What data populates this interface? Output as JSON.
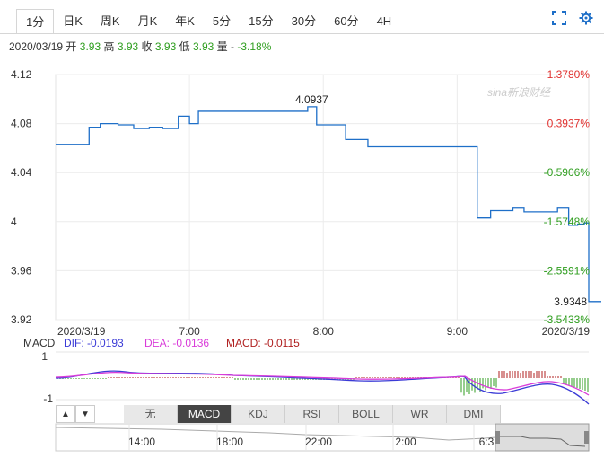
{
  "tabs": [
    {
      "label": "1分",
      "active": true
    },
    {
      "label": "日K",
      "active": false
    },
    {
      "label": "周K",
      "active": false
    },
    {
      "label": "月K",
      "active": false
    },
    {
      "label": "年K",
      "active": false
    },
    {
      "label": "5分",
      "active": false
    },
    {
      "label": "15分",
      "active": false
    },
    {
      "label": "30分",
      "active": false
    },
    {
      "label": "60分",
      "active": false
    },
    {
      "label": "4H",
      "active": false
    }
  ],
  "toolbar": {
    "fullscreen_icon": "fullscreen-icon",
    "settings_icon": "gear-icon"
  },
  "info": {
    "date": "2020/03/19",
    "open_label": "开",
    "open": "3.93",
    "high_label": "高",
    "high": "3.93",
    "close_label": "收",
    "close": "3.93",
    "low_label": "低",
    "low": "3.93",
    "volume_label": "量",
    "volume": "-",
    "change": "-3.18%"
  },
  "watermark": "sina新浪财经",
  "colors": {
    "price_line": "#1e6fc8",
    "up": "#e0312f",
    "down": "#2f9e1f",
    "dif": "#3b3bd6",
    "dea": "#d93cd9",
    "macd": "#b02020"
  },
  "chart_data": {
    "type": "line",
    "title": "",
    "ylim": [
      3.92,
      4.12
    ],
    "grid": true,
    "y_ticks": [
      "4.12",
      "4.08",
      "4.04",
      "4",
      "3.96",
      "3.92"
    ],
    "y_tick_values": [
      4.12,
      4.08,
      4.04,
      4.0,
      3.96,
      3.92
    ],
    "pct_ticks": [
      "1.3780%",
      "0.3937%",
      "-0.5906%",
      "-1.5748%",
      "-2.5591%",
      "-3.5433%"
    ],
    "x_ticks": [
      "2020/3/19",
      "7:00",
      "8:00",
      "9:00",
      "2020/3/19"
    ],
    "x_tick_times": [
      "06:00",
      "07:00",
      "08:00",
      "09:00",
      "09:59"
    ],
    "x_start": "06:00",
    "x_end": "09:59",
    "max_label": "4.0937",
    "min_label": "3.9348",
    "series": [
      {
        "times": [
          "06:00",
          "06:13",
          "06:15",
          "06:18",
          "06:20",
          "06:22",
          "06:28",
          "06:30",
          "06:35",
          "06:40",
          "06:42",
          "06:45",
          "06:48",
          "06:50",
          "06:55",
          "06:57",
          "07:00",
          "07:04",
          "07:10",
          "07:30",
          "07:40",
          "07:50",
          "07:53",
          "07:55",
          "07:57",
          "07:59",
          "08:05",
          "08:10",
          "08:15",
          "08:20",
          "08:30",
          "09:00",
          "09:09",
          "09:13",
          "09:15",
          "09:20",
          "09:25",
          "09:28",
          "09:30",
          "09:33",
          "09:40",
          "09:45",
          "09:48",
          "09:50",
          "09:52",
          "09:54",
          "09:57",
          "09:59"
        ],
        "values": [
          4.063,
          4.063,
          4.077,
          4.077,
          4.08,
          4.08,
          4.079,
          4.079,
          4.076,
          4.076,
          4.077,
          4.077,
          4.076,
          4.076,
          4.086,
          4.086,
          4.08,
          4.09,
          4.09,
          4.09,
          4.09,
          4.09,
          4.0937,
          4.0937,
          4.079,
          4.079,
          4.079,
          4.067,
          4.067,
          4.061,
          4.061,
          4.061,
          4.003,
          4.003,
          4.009,
          4.009,
          4.011,
          4.011,
          4.008,
          4.008,
          4.008,
          4.011,
          4.011,
          3.997,
          3.997,
          3.998,
          3.999,
          3.9348
        ]
      }
    ]
  },
  "macd": {
    "label": "MACD",
    "dif_label": "DIF: -0.0193",
    "dea_label": "DEA: -0.0136",
    "macd_label": "MACD: -0.0115",
    "y_ticks": [
      "1",
      "-1"
    ]
  },
  "indicator_buttons": [
    "无",
    "MACD",
    "KDJ",
    "RSI",
    "BOLL",
    "WR",
    "DMI"
  ],
  "active_indicator": "MACD",
  "nav": {
    "up_icon": "triangle-up-icon",
    "down_icon": "triangle-down-icon",
    "time_labels": [
      "14:00",
      "18:00",
      "22:00",
      "2:00",
      "6:3"
    ]
  }
}
